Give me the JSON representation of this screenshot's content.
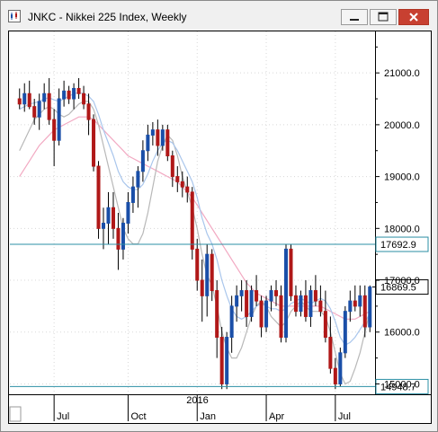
{
  "window": {
    "title": "JNKC - Nikkei 225 Index, Weekly",
    "buttons": [
      "minimize",
      "restore",
      "close"
    ]
  },
  "colors": {
    "up": "#1a4fa8",
    "down": "#b01818",
    "ma_fast": "#a9c6ec",
    "ma_slow": "#f2a9c2",
    "ma_mid": "#b8b8b8",
    "hline": "#2b8fa4"
  },
  "chart_data": {
    "type": "candlestick",
    "title": "JNKC - Nikkei 225 Index, Weekly",
    "y_ticks": [
      "21000.0",
      "20000.0",
      "19000.0",
      "18000.0",
      "17000.0",
      "16000.0",
      "15000.0"
    ],
    "y_tick_values": [
      21000,
      20000,
      19000,
      18000,
      17000,
      16000,
      15000
    ],
    "ylim": [
      14800,
      21800
    ],
    "x_labels": [
      "Jul",
      "Oct",
      "Jan",
      "Apr",
      "Jul"
    ],
    "x_label_index": [
      7,
      22,
      36,
      50,
      64
    ],
    "year_label": "2016",
    "year_label_index": 36,
    "horizontal_lines": [
      {
        "value": 17692.9,
        "label": "17692.9"
      },
      {
        "value": 14948.7,
        "label": "14948.7"
      }
    ],
    "last_price": {
      "value": 16869.5,
      "label": "16869.5"
    },
    "candles": [
      [
        20500,
        20700,
        20300,
        20400
      ],
      [
        20400,
        20800,
        20250,
        20600
      ],
      [
        20600,
        20850,
        20300,
        20350
      ],
      [
        20350,
        20500,
        20000,
        20150
      ],
      [
        20150,
        20600,
        19900,
        20450
      ],
      [
        20450,
        20800,
        20300,
        20600
      ],
      [
        20600,
        20900,
        20000,
        20100
      ],
      [
        20100,
        20300,
        19200,
        19700
      ],
      [
        19700,
        20700,
        19600,
        20500
      ],
      [
        20500,
        20850,
        20350,
        20650
      ],
      [
        20650,
        20750,
        20400,
        20500
      ],
      [
        20500,
        20800,
        20300,
        20700
      ],
      [
        20700,
        20900,
        20500,
        20600
      ],
      [
        20600,
        20750,
        20300,
        20400
      ],
      [
        20400,
        20600,
        19800,
        20100
      ],
      [
        20100,
        20200,
        19100,
        19200
      ],
      [
        19200,
        19300,
        17800,
        18000
      ],
      [
        18000,
        18400,
        17600,
        18100
      ],
      [
        18100,
        18700,
        17700,
        18400
      ],
      [
        18400,
        18700,
        17800,
        18000
      ],
      [
        18000,
        18300,
        17200,
        17600
      ],
      [
        17600,
        18200,
        17400,
        18100
      ],
      [
        18100,
        18700,
        17900,
        18500
      ],
      [
        18500,
        19000,
        18300,
        18800
      ],
      [
        18800,
        19200,
        18400,
        19100
      ],
      [
        19100,
        19700,
        18900,
        19500
      ],
      [
        19500,
        20000,
        19300,
        19800
      ],
      [
        19800,
        20050,
        19600,
        19900
      ],
      [
        19900,
        20100,
        19400,
        19600
      ],
      [
        19600,
        20000,
        19500,
        19900
      ],
      [
        19900,
        20000,
        19300,
        19400
      ],
      [
        19400,
        19500,
        18800,
        19000
      ],
      [
        19000,
        19200,
        18700,
        18900
      ],
      [
        18900,
        19100,
        18600,
        18800
      ],
      [
        18800,
        19000,
        18500,
        18700
      ],
      [
        18700,
        18800,
        17400,
        17600
      ],
      [
        17600,
        17800,
        16800,
        17000
      ],
      [
        17000,
        17400,
        16200,
        16700
      ],
      [
        16700,
        17700,
        16300,
        17500
      ],
      [
        17500,
        17600,
        16600,
        16800
      ],
      [
        16800,
        17000,
        15500,
        15900
      ],
      [
        15900,
        16100,
        14900,
        15000
      ],
      [
        15000,
        16000,
        14900,
        15900
      ],
      [
        15900,
        16700,
        15600,
        16500
      ],
      [
        16500,
        16900,
        16200,
        16700
      ],
      [
        16700,
        17000,
        16400,
        16800
      ],
      [
        16800,
        17000,
        16100,
        16300
      ],
      [
        16300,
        16900,
        16200,
        16800
      ],
      [
        16800,
        17100,
        16500,
        16600
      ],
      [
        16600,
        16700,
        15900,
        16100
      ],
      [
        16100,
        16700,
        16000,
        16600
      ],
      [
        16600,
        16900,
        16400,
        16800
      ],
      [
        16800,
        17000,
        16500,
        16700
      ],
      [
        16700,
        16900,
        15800,
        15900
      ],
      [
        15900,
        17700,
        15800,
        17600
      ],
      [
        17600,
        17700,
        16600,
        16700
      ],
      [
        16700,
        16900,
        16300,
        16400
      ],
      [
        16400,
        16800,
        16300,
        16700
      ],
      [
        16700,
        17000,
        16200,
        16300
      ],
      [
        16300,
        16900,
        16100,
        16800
      ],
      [
        16800,
        17100,
        16500,
        16600
      ],
      [
        16600,
        16900,
        16300,
        16400
      ],
      [
        16400,
        16800,
        15800,
        15900
      ],
      [
        15900,
        16300,
        15200,
        15300
      ],
      [
        15300,
        15500,
        14900,
        15000
      ],
      [
        15000,
        15700,
        14950,
        15600
      ],
      [
        15600,
        16500,
        15500,
        16400
      ],
      [
        16400,
        16800,
        16200,
        16600
      ],
      [
        16600,
        16900,
        16400,
        16500
      ],
      [
        16500,
        16900,
        16300,
        16700
      ],
      [
        16700,
        16900,
        15900,
        16100
      ],
      [
        16100,
        16900,
        16000,
        16869.5
      ]
    ],
    "ma_fast": [
      20300,
      20350,
      20400,
      20420,
      20450,
      20500,
      20520,
      20480,
      20450,
      20500,
      20550,
      20600,
      20620,
      20600,
      20550,
      20450,
      20200,
      19900,
      19650,
      19400,
      19100,
      18900,
      18800,
      18750,
      18750,
      18850,
      19050,
      19300,
      19500,
      19650,
      19700,
      19650,
      19500,
      19300,
      19100,
      18900,
      18600,
      18200,
      17900,
      17700,
      17400,
      17000,
      16700,
      16450,
      16300,
      16250,
      16300,
      16400,
      16500,
      16550,
      16500,
      16450,
      16450,
      16400,
      16450,
      16550,
      16600,
      16650,
      16600,
      16550,
      16600,
      16650,
      16600,
      16450,
      16200,
      15900,
      15750,
      15800,
      15900,
      16050,
      16200,
      16350
    ],
    "ma_slow": [
      19000,
      19150,
      19300,
      19450,
      19600,
      19700,
      19800,
      19900,
      19950,
      20000,
      20050,
      20100,
      20150,
      20150,
      20150,
      20100,
      20000,
      19900,
      19800,
      19700,
      19600,
      19500,
      19400,
      19350,
      19300,
      19250,
      19200,
      19150,
      19100,
      19050,
      19000,
      18950,
      18900,
      18800,
      18700,
      18600,
      18450,
      18300,
      18150,
      18000,
      17850,
      17700,
      17550,
      17400,
      17250,
      17100,
      16950,
      16850,
      16750,
      16700,
      16650,
      16600,
      16550,
      16500,
      16500,
      16500,
      16500,
      16500,
      16500,
      16500,
      16500,
      16500,
      16450,
      16400,
      16350,
      16300,
      16250,
      16250,
      16250,
      16300,
      16350,
      16400
    ],
    "ma_mid": [
      19500,
      19700,
      19900,
      20100,
      20200,
      20300,
      20350,
      20300,
      20200,
      20150,
      20200,
      20300,
      20400,
      20450,
      20450,
      20300,
      20000,
      19600,
      19200,
      18800,
      18400,
      18000,
      17800,
      17700,
      17700,
      17900,
      18300,
      18800,
      19300,
      19600,
      19800,
      19700,
      19400,
      19000,
      18700,
      18400,
      18000,
      17500,
      17100,
      16900,
      16500,
      16000,
      15700,
      15500,
      15500,
      15700,
      16000,
      16300,
      16500,
      16600,
      16500,
      16300,
      16200,
      16100,
      16200,
      16400,
      16500,
      16600,
      16500,
      16400,
      16400,
      16400,
      16300,
      16000,
      15600,
      15200,
      15000,
      15050,
      15300,
      15600,
      16000,
      16400
    ]
  }
}
